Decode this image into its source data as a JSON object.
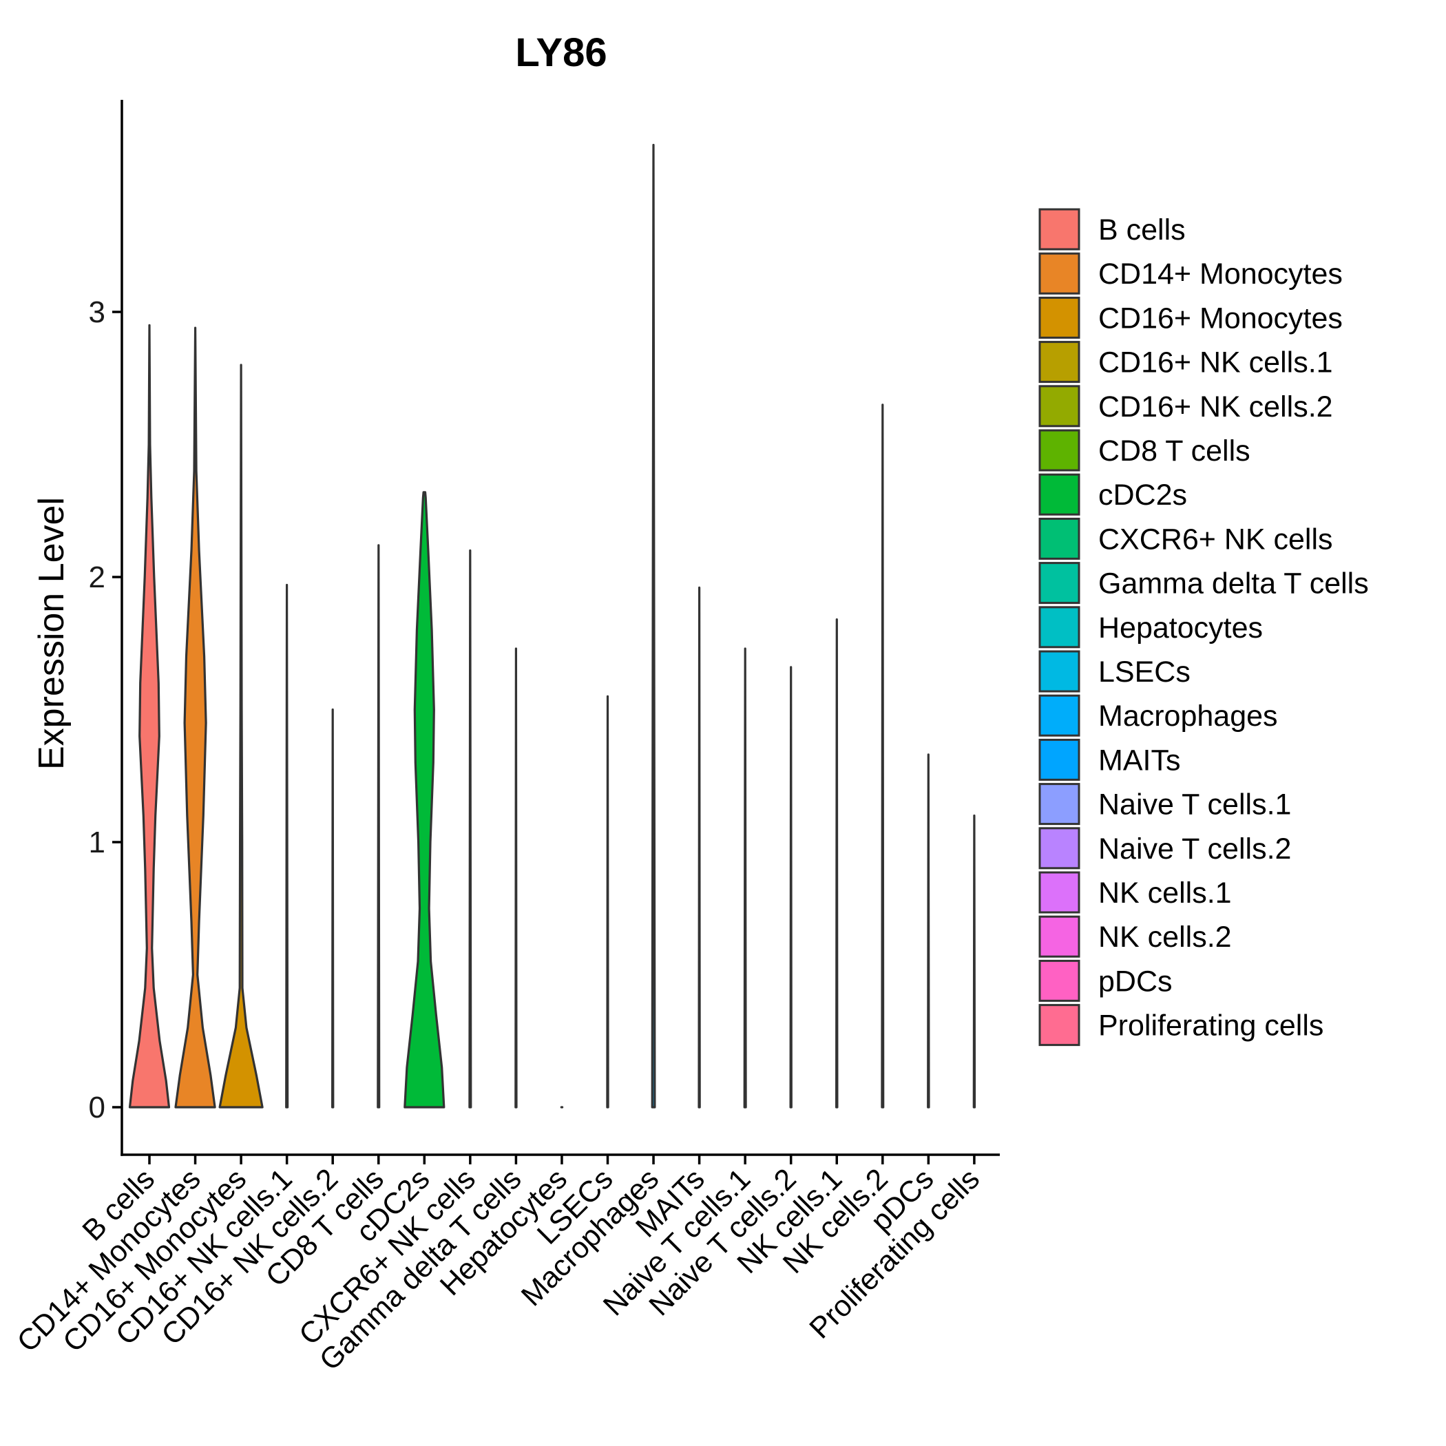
{
  "chart_data": {
    "type": "violin",
    "title": "LY86",
    "xlabel": "",
    "ylabel": "Expression Level",
    "ylim": [
      -0.18,
      3.72
    ],
    "yticks": [
      0,
      1,
      2,
      3
    ],
    "legend_position": "right",
    "categories": [
      "B cells",
      "CD14+ Monocytes",
      "CD16+ Monocytes",
      "CD16+ NK cells.1",
      "CD16+ NK cells.2",
      "CD8 T cells",
      "cDC2s",
      "CXCR6+ NK cells",
      "Gamma delta T cells",
      "Hepatocytes",
      "LSECs",
      "Macrophages",
      "MAITs",
      "Naive T cells.1",
      "Naive T cells.2",
      "NK cells.1",
      "NK cells.2",
      "pDCs",
      "Proliferating cells"
    ],
    "colors": [
      "#F8766D",
      "#E88526",
      "#D39200",
      "#B79F00",
      "#93AA00",
      "#5EB300",
      "#00BA38",
      "#00BF74",
      "#00C19F",
      "#00BFC4",
      "#00B9E3",
      "#00ADFA",
      "#00A5FF",
      "#8C9EFF",
      "#B983FF",
      "#DC71FA",
      "#F564E3",
      "#FF61C3",
      "#FF6C91"
    ],
    "max_values": [
      2.95,
      2.94,
      2.8,
      1.97,
      1.5,
      2.12,
      2.32,
      2.1,
      1.73,
      0.0,
      1.55,
      3.63,
      1.96,
      1.73,
      1.66,
      1.84,
      2.65,
      1.33,
      1.1
    ],
    "density_profiles": [
      [
        [
          0,
          0.92
        ],
        [
          0.1,
          0.78
        ],
        [
          0.25,
          0.48
        ],
        [
          0.45,
          0.2
        ],
        [
          0.6,
          0.12
        ],
        [
          0.9,
          0.2
        ],
        [
          1.1,
          0.28
        ],
        [
          1.4,
          0.46
        ],
        [
          1.6,
          0.43
        ],
        [
          2.0,
          0.22
        ],
        [
          2.3,
          0.09
        ],
        [
          2.5,
          0.03
        ],
        [
          2.95,
          0.0
        ]
      ],
      [
        [
          0,
          0.92
        ],
        [
          0.12,
          0.72
        ],
        [
          0.3,
          0.35
        ],
        [
          0.5,
          0.1
        ],
        [
          0.7,
          0.18
        ],
        [
          1.1,
          0.38
        ],
        [
          1.45,
          0.5
        ],
        [
          1.7,
          0.42
        ],
        [
          2.1,
          0.18
        ],
        [
          2.4,
          0.05
        ],
        [
          2.94,
          0.0
        ]
      ],
      [
        [
          0,
          1.0
        ],
        [
          0.12,
          0.72
        ],
        [
          0.3,
          0.25
        ],
        [
          0.45,
          0.06
        ],
        [
          1.0,
          0.05
        ],
        [
          1.5,
          0.03
        ],
        [
          2.8,
          0.0
        ]
      ],
      [
        [
          0,
          0.03
        ],
        [
          1.97,
          0.0
        ]
      ],
      [
        [
          0,
          0.02
        ],
        [
          1.5,
          0.0
        ]
      ],
      [
        [
          0,
          0.03
        ],
        [
          2.12,
          0.0
        ]
      ],
      [
        [
          0,
          0.92
        ],
        [
          0.15,
          0.82
        ],
        [
          0.35,
          0.55
        ],
        [
          0.55,
          0.3
        ],
        [
          0.75,
          0.22
        ],
        [
          1.0,
          0.28
        ],
        [
          1.3,
          0.42
        ],
        [
          1.5,
          0.45
        ],
        [
          1.8,
          0.35
        ],
        [
          2.1,
          0.18
        ],
        [
          2.3,
          0.06
        ],
        [
          2.32,
          0.04
        ]
      ],
      [
        [
          0,
          0.03
        ],
        [
          2.1,
          0.0
        ]
      ],
      [
        [
          0,
          0.02
        ],
        [
          1.73,
          0.0
        ]
      ],
      [
        [
          0,
          0.02
        ]
      ],
      [
        [
          0,
          0.02
        ],
        [
          1.55,
          0.0
        ]
      ],
      [
        [
          0,
          0.06
        ],
        [
          3.63,
          0.0
        ]
      ],
      [
        [
          0,
          0.02
        ],
        [
          1.96,
          0.0
        ]
      ],
      [
        [
          0,
          0.03
        ],
        [
          1.73,
          0.0
        ]
      ],
      [
        [
          0,
          0.02
        ],
        [
          1.66,
          0.0
        ]
      ],
      [
        [
          0,
          0.02
        ],
        [
          1.84,
          0.0
        ]
      ],
      [
        [
          0,
          0.03
        ],
        [
          2.65,
          0.0
        ]
      ],
      [
        [
          0,
          0.02
        ],
        [
          1.33,
          0.0
        ]
      ],
      [
        [
          0,
          0.02
        ],
        [
          1.1,
          0.0
        ]
      ]
    ]
  }
}
